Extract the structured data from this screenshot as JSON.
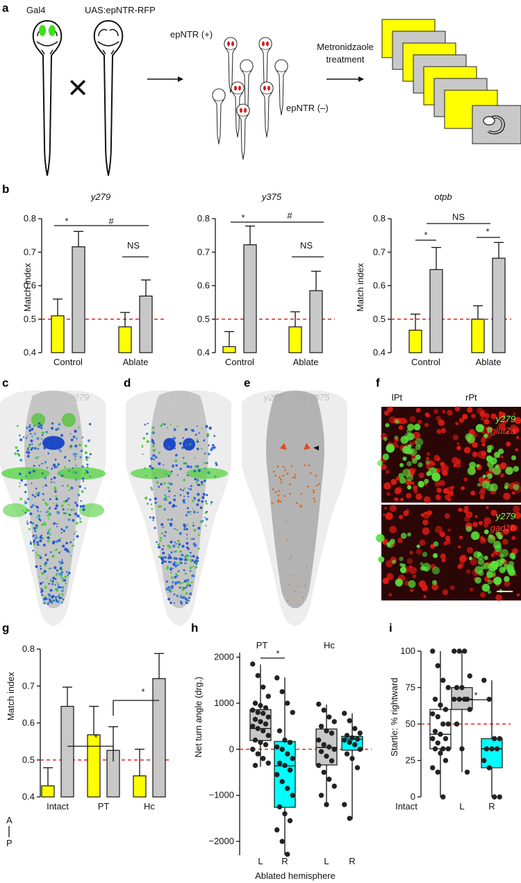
{
  "panel_labels": {
    "a": "a",
    "b": "b",
    "c": "c",
    "d": "d",
    "e": "e",
    "f": "f",
    "g": "g",
    "h": "h",
    "i": "i"
  },
  "panel_a": {
    "gal4": "Gal4",
    "uas": "UAS:epNTR-RFP",
    "cross": "✕",
    "pos": "epNTR (+)",
    "neg": "epNTR (–)",
    "treat_line1": "Metronidzaole",
    "treat_line2": "treatment"
  },
  "panel_b": {
    "ylabel": "Match index",
    "groups": [
      "Control",
      "Ablate"
    ],
    "titles": [
      "y279",
      "y375",
      "otpb"
    ]
  },
  "panel_cde": {
    "c_title": "y279",
    "d_title": "y375",
    "e_title_a": "y279",
    "e_title_op": "∩",
    "e_title_b": "y375",
    "axis_a": "A",
    "axis_p": "P"
  },
  "panel_f": {
    "lpt": "lPt",
    "rpt": "rPt",
    "top_green": "y279",
    "top_red": "vglut2a",
    "bottom_green": "y279",
    "bottom_red": "gad1b"
  },
  "panel_g": {
    "ylabel": "Match index",
    "groups": [
      "Intact",
      "PT",
      "Hc"
    ]
  },
  "panel_h": {
    "ylabel": "Net turn angle (drg.)",
    "xlabel": "Ablated hemisphere",
    "group_titles": [
      "PT",
      "Hc"
    ],
    "cat_labels": [
      "L",
      "R",
      "L",
      "R"
    ]
  },
  "panel_i": {
    "ylabel": "Startle: % rightward",
    "cat_labels": [
      "Intact",
      "L",
      "R"
    ]
  },
  "sig_labels": {
    "star": "*",
    "hash": "#",
    "ns": "NS"
  },
  "colors": {
    "yellow": "#ffff00",
    "gray": "#c8c8c8",
    "cyan": "#00ffff",
    "threshold": "#e3231e",
    "green": "#4ddb2e",
    "red": "#e8201b"
  },
  "chart_data": [
    {
      "type": "bar",
      "panel": "b",
      "title": "y279",
      "ylabel": "Match index",
      "ylim": [
        0.4,
        0.8
      ],
      "yticks": [
        0.4,
        0.5,
        0.6,
        0.7,
        0.8
      ],
      "threshold": 0.5,
      "categories": [
        "Control",
        "Ablate"
      ],
      "series": [
        {
          "color": "yellow",
          "values": [
            0.51,
            0.477
          ],
          "errors": [
            0.05,
            0.043
          ]
        },
        {
          "color": "gray",
          "values": [
            0.716,
            0.569
          ],
          "errors": [
            0.046,
            0.048
          ]
        }
      ],
      "annotations": [
        {
          "label": "*",
          "between": "Control"
        },
        {
          "label": "#",
          "between": "Control gray–Ablate"
        },
        {
          "label": "NS",
          "between": "Ablate"
        }
      ]
    },
    {
      "type": "bar",
      "panel": "b",
      "title": "y375",
      "ylabel": "",
      "ylim": [
        0.4,
        0.8
      ],
      "yticks": [
        0.4,
        0.5,
        0.6,
        0.7,
        0.8
      ],
      "threshold": 0.5,
      "categories": [
        "Control",
        "Ablate"
      ],
      "series": [
        {
          "color": "yellow",
          "values": [
            0.418,
            0.477
          ],
          "errors": [
            0.045,
            0.045
          ]
        },
        {
          "color": "gray",
          "values": [
            0.722,
            0.585
          ],
          "errors": [
            0.056,
            0.058
          ]
        }
      ],
      "annotations": [
        {
          "label": "*",
          "between": "Control"
        },
        {
          "label": "#",
          "between": "Control gray–Ablate"
        },
        {
          "label": "NS",
          "between": "Ablate"
        }
      ]
    },
    {
      "type": "bar",
      "panel": "b",
      "title": "otpb",
      "ylabel": "Match index",
      "ylim": [
        0.4,
        0.8
      ],
      "yticks": [
        0.4,
        0.5,
        0.6,
        0.7,
        0.8
      ],
      "threshold": 0.5,
      "categories": [
        "Control",
        "Ablate"
      ],
      "series": [
        {
          "color": "yellow",
          "values": [
            0.467,
            0.5
          ],
          "errors": [
            0.048,
            0.04
          ]
        },
        {
          "color": "gray",
          "values": [
            0.648,
            0.682
          ],
          "errors": [
            0.066,
            0.047
          ]
        }
      ],
      "annotations": [
        {
          "label": "*",
          "between": "Control"
        },
        {
          "label": "NS",
          "between": "Control–Ablate"
        },
        {
          "label": "*",
          "between": "Ablate"
        }
      ]
    },
    {
      "type": "bar",
      "panel": "g",
      "ylabel": "Match index",
      "ylim": [
        0.4,
        0.8
      ],
      "yticks": [
        0.4,
        0.5,
        0.6,
        0.7,
        0.8
      ],
      "threshold": 0.5,
      "categories": [
        "Intact",
        "PT",
        "Hc"
      ],
      "series": [
        {
          "color": "yellow",
          "values": [
            0.43,
            0.568,
            0.457
          ],
          "errors": [
            0.049,
            0.077,
            0.072
          ]
        },
        {
          "color": "gray",
          "values": [
            0.645,
            0.526,
            0.72
          ],
          "errors": [
            0.052,
            0.064,
            0.068
          ]
        }
      ],
      "annotations": [
        {
          "label": "*",
          "between": "Intact gray–PT gray"
        },
        {
          "label": "*",
          "between": "PT gray–Hc gray"
        }
      ]
    },
    {
      "type": "box",
      "panel": "h",
      "ylabel": "Net turn angle (drg.)",
      "xlabel": "Ablated hemisphere",
      "ylim": [
        -2300,
        2100
      ],
      "yticks": [
        -2000,
        -1000,
        0,
        1000,
        2000
      ],
      "threshold": 0,
      "categories": [
        "L",
        "R",
        "L",
        "R"
      ],
      "groups": [
        "PT",
        "Hc"
      ],
      "boxes": [
        {
          "color": "gray",
          "min": -380,
          "q1": 190,
          "median": 450,
          "q3": 860,
          "max": 1840
        },
        {
          "color": "cyan",
          "min": -2290,
          "q1": -1260,
          "median": -360,
          "q3": 170,
          "max": 1560
        },
        {
          "color": "gray",
          "min": -1230,
          "q1": -340,
          "median": 40,
          "q3": 440,
          "max": 970
        },
        {
          "color": "cyan",
          "min": -1520,
          "q1": -20,
          "median": 220,
          "q3": 280,
          "max": 780
        }
      ],
      "points": [
        [
          1850,
          1600,
          1350,
          1150,
          1000,
          950,
          900,
          850,
          800,
          780,
          700,
          650,
          600,
          550,
          500,
          450,
          400,
          300,
          200,
          150,
          100,
          0,
          -100,
          -200,
          -300,
          -350
        ],
        [
          1550,
          1250,
          1000,
          800,
          400,
          200,
          150,
          50,
          0,
          -100,
          -200,
          -300,
          -350,
          -450,
          -550,
          -700,
          -850,
          -1000,
          -1250,
          -1400,
          -1550,
          -1750,
          -2000,
          -2280
        ],
        [
          980,
          850,
          700,
          600,
          500,
          400,
          350,
          200,
          100,
          50,
          0,
          -50,
          -150,
          -250,
          -350,
          -500,
          -650,
          -800,
          -1000,
          -1200
        ],
        [
          780,
          620,
          450,
          350,
          300,
          250,
          220,
          200,
          150,
          100,
          0,
          -100,
          -200,
          -400,
          -1200,
          -1500
        ]
      ],
      "annotations": [
        {
          "label": "*",
          "between": "PT L–R"
        }
      ]
    },
    {
      "type": "box",
      "panel": "i",
      "ylabel": "Startle: % rightward",
      "ylim": [
        0,
        100
      ],
      "yticks": [
        0,
        25,
        50,
        75,
        100
      ],
      "threshold": 50,
      "categories": [
        "Intact",
        "L",
        "R"
      ],
      "boxes": [
        {
          "color": "white",
          "min": 0,
          "q1": 33,
          "median": 43,
          "q3": 60,
          "max": 100
        },
        {
          "color": "gray",
          "min": 17,
          "q1": 60,
          "median": 67,
          "q3": 75,
          "max": 100
        },
        {
          "color": "cyan",
          "min": 0,
          "q1": 20,
          "median": 33,
          "q3": 40,
          "max": 80
        }
      ],
      "points": [
        [
          100,
          90,
          80,
          75,
          67,
          63,
          60,
          57,
          55,
          50,
          50,
          45,
          43,
          40,
          40,
          37,
          33,
          33,
          33,
          30,
          25,
          20,
          17,
          0
        ],
        [
          100,
          100,
          100,
          83,
          75,
          75,
          67,
          67,
          67,
          67,
          60,
          50,
          33,
          17
        ],
        [
          80,
          67,
          40,
          40,
          33,
          33,
          33,
          25,
          20,
          0,
          0
        ]
      ],
      "annotations": [
        {
          "label": "*",
          "between": "L–R"
        }
      ]
    }
  ]
}
